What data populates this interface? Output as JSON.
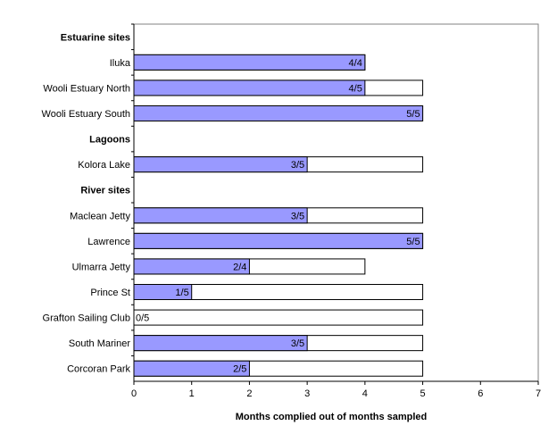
{
  "chart_data": {
    "type": "bar",
    "orientation": "horizontal",
    "xlabel": "Months complied out of months sampled",
    "xlim": [
      0,
      7
    ],
    "xticks": [
      0,
      1,
      2,
      3,
      4,
      5,
      6,
      7
    ],
    "grid": false,
    "legend": "none",
    "colors": {
      "complied": "#9999ff",
      "sampled": "#ffffff",
      "stroke": "#000000"
    },
    "rows": [
      {
        "label": "Estuarine sites",
        "group": true
      },
      {
        "label": "Iluka",
        "complied": 4,
        "sampled": 4,
        "value_label": "4/4"
      },
      {
        "label": "Wooli Estuary North",
        "complied": 4,
        "sampled": 5,
        "value_label": "4/5"
      },
      {
        "label": "Wooli Estuary South",
        "complied": 5,
        "sampled": 5,
        "value_label": "5/5"
      },
      {
        "label": "Lagoons",
        "group": true
      },
      {
        "label": "Kolora Lake",
        "complied": 3,
        "sampled": 5,
        "value_label": "3/5"
      },
      {
        "label": "River sites",
        "group": true
      },
      {
        "label": "Maclean Jetty",
        "complied": 3,
        "sampled": 5,
        "value_label": "3/5"
      },
      {
        "label": "Lawrence",
        "complied": 5,
        "sampled": 5,
        "value_label": "5/5"
      },
      {
        "label": "Ulmarra Jetty",
        "complied": 2,
        "sampled": 4,
        "value_label": "2/4"
      },
      {
        "label": "Prince St",
        "complied": 1,
        "sampled": 5,
        "value_label": "1/5"
      },
      {
        "label": "Grafton Sailing Club",
        "complied": 0,
        "sampled": 5,
        "value_label": "0/5"
      },
      {
        "label": "South Mariner",
        "complied": 3,
        "sampled": 5,
        "value_label": "3/5"
      },
      {
        "label": "Corcoran Park",
        "complied": 2,
        "sampled": 5,
        "value_label": "2/5"
      }
    ]
  }
}
